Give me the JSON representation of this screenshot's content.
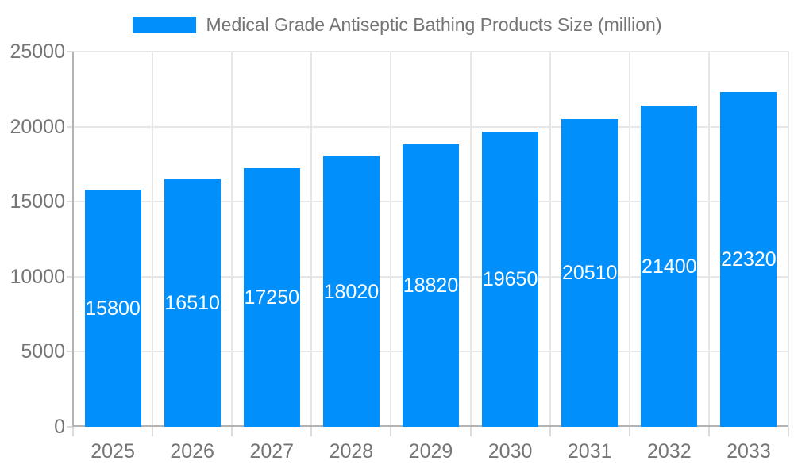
{
  "chart_data": {
    "type": "bar",
    "title": "Medical Grade Antiseptic Bathing Products Size (million)",
    "categories": [
      "2025",
      "2026",
      "2027",
      "2028",
      "2029",
      "2030",
      "2031",
      "2032",
      "2033"
    ],
    "values": [
      15800,
      16510,
      17250,
      18020,
      18820,
      19650,
      20510,
      21400,
      22320
    ],
    "xlabel": "",
    "ylabel": "",
    "ylim": [
      0,
      25000
    ],
    "yticks": [
      0,
      5000,
      10000,
      15000,
      20000,
      25000
    ],
    "grid": true,
    "legend_position": "top-center",
    "bar_label_position": "inside-center",
    "colors": {
      "bar": "#008FFB",
      "bar_label": "#FFFFFF",
      "axis_line": "#B3B3B3",
      "grid_line": "#E7E7E7",
      "tick_line": "#DCDCDC",
      "axis_label": "#757575",
      "title": "#757575",
      "background": "#FFFFFF"
    }
  }
}
